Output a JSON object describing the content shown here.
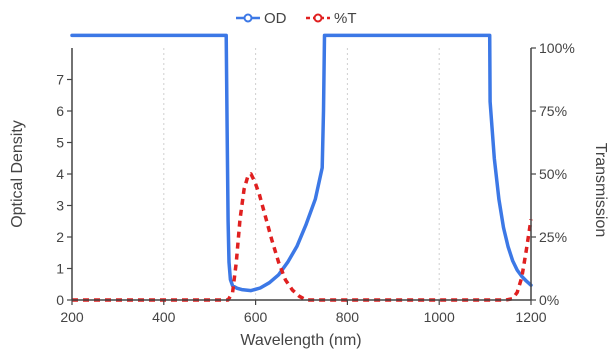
{
  "chart_data": {
    "type": "line",
    "xlabel": "Wavelength (nm)",
    "ylabel": "Optical Density",
    "y2label": "Transmission",
    "xlim": [
      200,
      1200
    ],
    "ylim": [
      0,
      8
    ],
    "y2lim": [
      0,
      100
    ],
    "x_ticks": [
      "200",
      "400",
      "600",
      "800",
      "1000",
      "1200"
    ],
    "y_ticks": [
      "0",
      "1",
      "2",
      "3",
      "4",
      "5",
      "6",
      "7"
    ],
    "y2_ticks": [
      "0%",
      "25%",
      "50%",
      "75%",
      "100%"
    ],
    "grid": "vertical dotted",
    "legend_position": "top-center",
    "series": [
      {
        "name": "OD",
        "color": "#3c78e6",
        "axis": "left",
        "style": "solid",
        "marker": "circle-open",
        "points": [
          [
            200,
            8.4
          ],
          [
            536,
            8.4
          ],
          [
            538,
            5.5
          ],
          [
            540,
            2.5
          ],
          [
            542,
            1.2
          ],
          [
            545,
            0.65
          ],
          [
            550,
            0.45
          ],
          [
            560,
            0.37
          ],
          [
            570,
            0.33
          ],
          [
            590,
            0.3
          ],
          [
            610,
            0.38
          ],
          [
            630,
            0.55
          ],
          [
            650,
            0.8
          ],
          [
            670,
            1.2
          ],
          [
            690,
            1.7
          ],
          [
            710,
            2.4
          ],
          [
            730,
            3.2
          ],
          [
            745,
            4.2
          ],
          [
            748,
            6.0
          ],
          [
            750,
            8.4
          ],
          [
            1110,
            8.4
          ],
          [
            1111,
            6.3
          ],
          [
            1120,
            4.5
          ],
          [
            1130,
            3.2
          ],
          [
            1140,
            2.3
          ],
          [
            1150,
            1.7
          ],
          [
            1160,
            1.25
          ],
          [
            1170,
            0.95
          ],
          [
            1180,
            0.75
          ],
          [
            1190,
            0.6
          ],
          [
            1200,
            0.47
          ]
        ]
      },
      {
        "name": "%T",
        "color": "#e02020",
        "axis": "right",
        "style": "dashed",
        "marker": "circle-open",
        "points": [
          [
            200,
            0
          ],
          [
            540,
            0
          ],
          [
            550,
            3
          ],
          [
            558,
            15
          ],
          [
            566,
            32
          ],
          [
            575,
            44
          ],
          [
            583,
            49
          ],
          [
            590,
            50
          ],
          [
            598,
            47
          ],
          [
            608,
            42
          ],
          [
            620,
            34
          ],
          [
            635,
            24
          ],
          [
            650,
            15
          ],
          [
            665,
            8
          ],
          [
            680,
            4
          ],
          [
            695,
            1.5
          ],
          [
            710,
            0
          ],
          [
            1145,
            0
          ],
          [
            1160,
            0.5
          ],
          [
            1170,
            3
          ],
          [
            1180,
            9
          ],
          [
            1190,
            20
          ],
          [
            1200,
            32
          ]
        ]
      }
    ]
  }
}
